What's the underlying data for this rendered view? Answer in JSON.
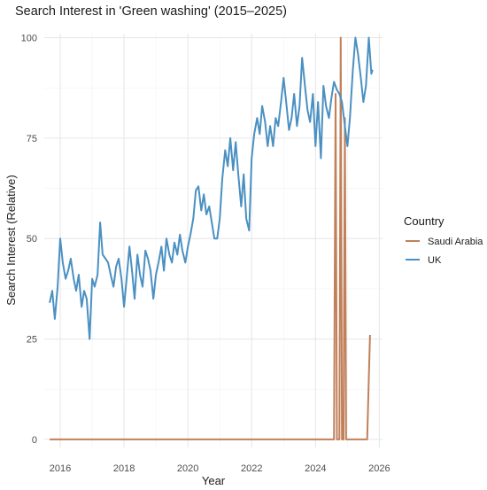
{
  "chart_data": {
    "type": "line",
    "title": "Search Interest in 'Green washing' (2015–2025)",
    "xlabel": "Year",
    "ylabel": "Search Interest (Relative)",
    "xlim": [
      2015.5,
      2026.1
    ],
    "ylim": [
      -2,
      101
    ],
    "x_ticks": [
      2016,
      2018,
      2020,
      2022,
      2024,
      2026
    ],
    "y_ticks": [
      0,
      25,
      50,
      75,
      100
    ],
    "grid": true,
    "legend_position": "right",
    "legend_title": "Country",
    "series": [
      {
        "name": "Saudi Arabia",
        "color": "#c0805a",
        "points": [
          [
            2015.67,
            0
          ],
          [
            2024.58,
            0
          ],
          [
            2024.63,
            86
          ],
          [
            2024.67,
            0
          ],
          [
            2024.75,
            0
          ],
          [
            2024.79,
            100
          ],
          [
            2024.83,
            0
          ],
          [
            2024.88,
            0
          ],
          [
            2024.92,
            80
          ],
          [
            2024.96,
            0
          ],
          [
            2025.58,
            0
          ],
          [
            2025.62,
            0
          ],
          [
            2025.67,
            15
          ],
          [
            2025.71,
            26
          ]
        ]
      },
      {
        "name": "UK",
        "color": "#4a90c2",
        "points": [
          [
            2015.67,
            34
          ],
          [
            2015.75,
            37
          ],
          [
            2015.83,
            30
          ],
          [
            2015.92,
            38
          ],
          [
            2016.0,
            50
          ],
          [
            2016.08,
            44
          ],
          [
            2016.17,
            40
          ],
          [
            2016.25,
            42
          ],
          [
            2016.33,
            45
          ],
          [
            2016.42,
            40
          ],
          [
            2016.5,
            37
          ],
          [
            2016.58,
            41
          ],
          [
            2016.67,
            33
          ],
          [
            2016.75,
            37
          ],
          [
            2016.83,
            35
          ],
          [
            2016.92,
            25
          ],
          [
            2017.0,
            40
          ],
          [
            2017.08,
            38
          ],
          [
            2017.17,
            41
          ],
          [
            2017.25,
            54
          ],
          [
            2017.33,
            46
          ],
          [
            2017.42,
            45
          ],
          [
            2017.5,
            44
          ],
          [
            2017.58,
            41
          ],
          [
            2017.67,
            38
          ],
          [
            2017.75,
            43
          ],
          [
            2017.83,
            45
          ],
          [
            2017.92,
            40
          ],
          [
            2018.0,
            33
          ],
          [
            2018.08,
            40
          ],
          [
            2018.17,
            48
          ],
          [
            2018.25,
            42
          ],
          [
            2018.33,
            35
          ],
          [
            2018.42,
            46
          ],
          [
            2018.5,
            41
          ],
          [
            2018.58,
            38
          ],
          [
            2018.67,
            47
          ],
          [
            2018.75,
            45
          ],
          [
            2018.83,
            42
          ],
          [
            2018.92,
            35
          ],
          [
            2019.0,
            41
          ],
          [
            2019.08,
            44
          ],
          [
            2019.17,
            48
          ],
          [
            2019.25,
            42
          ],
          [
            2019.33,
            50
          ],
          [
            2019.42,
            46
          ],
          [
            2019.5,
            44
          ],
          [
            2019.58,
            49
          ],
          [
            2019.67,
            46
          ],
          [
            2019.75,
            51
          ],
          [
            2019.83,
            47
          ],
          [
            2019.92,
            44
          ],
          [
            2020.0,
            48
          ],
          [
            2020.08,
            51
          ],
          [
            2020.17,
            55
          ],
          [
            2020.25,
            62
          ],
          [
            2020.33,
            63
          ],
          [
            2020.42,
            57
          ],
          [
            2020.5,
            61
          ],
          [
            2020.58,
            56
          ],
          [
            2020.67,
            58
          ],
          [
            2020.75,
            54
          ],
          [
            2020.83,
            50
          ],
          [
            2020.92,
            50
          ],
          [
            2021.0,
            55
          ],
          [
            2021.08,
            65
          ],
          [
            2021.17,
            72
          ],
          [
            2021.25,
            68
          ],
          [
            2021.33,
            75
          ],
          [
            2021.42,
            67
          ],
          [
            2021.5,
            74
          ],
          [
            2021.58,
            66
          ],
          [
            2021.67,
            58
          ],
          [
            2021.75,
            66
          ],
          [
            2021.83,
            55
          ],
          [
            2021.92,
            52
          ],
          [
            2022.0,
            70
          ],
          [
            2022.08,
            76
          ],
          [
            2022.17,
            80
          ],
          [
            2022.25,
            76
          ],
          [
            2022.33,
            83
          ],
          [
            2022.42,
            79
          ],
          [
            2022.5,
            73
          ],
          [
            2022.58,
            78
          ],
          [
            2022.67,
            73
          ],
          [
            2022.75,
            80
          ],
          [
            2022.83,
            78
          ],
          [
            2022.92,
            84
          ],
          [
            2023.0,
            90
          ],
          [
            2023.08,
            84
          ],
          [
            2023.17,
            77
          ],
          [
            2023.25,
            80
          ],
          [
            2023.33,
            86
          ],
          [
            2023.42,
            78
          ],
          [
            2023.5,
            83
          ],
          [
            2023.58,
            95
          ],
          [
            2023.67,
            88
          ],
          [
            2023.75,
            82
          ],
          [
            2023.83,
            79
          ],
          [
            2023.92,
            86
          ],
          [
            2024.0,
            73
          ],
          [
            2024.08,
            84
          ],
          [
            2024.17,
            70
          ],
          [
            2024.25,
            88
          ],
          [
            2024.33,
            83
          ],
          [
            2024.42,
            80
          ],
          [
            2024.5,
            85
          ],
          [
            2024.58,
            89
          ],
          [
            2024.67,
            87
          ],
          [
            2024.75,
            86
          ],
          [
            2024.83,
            84
          ],
          [
            2024.92,
            78
          ],
          [
            2025.0,
            73
          ],
          [
            2025.08,
            80
          ],
          [
            2025.17,
            92
          ],
          [
            2025.25,
            100
          ],
          [
            2025.33,
            96
          ],
          [
            2025.42,
            90
          ],
          [
            2025.5,
            84
          ],
          [
            2025.58,
            88
          ],
          [
            2025.67,
            100
          ],
          [
            2025.75,
            91
          ],
          [
            2025.79,
            92
          ]
        ]
      }
    ]
  }
}
